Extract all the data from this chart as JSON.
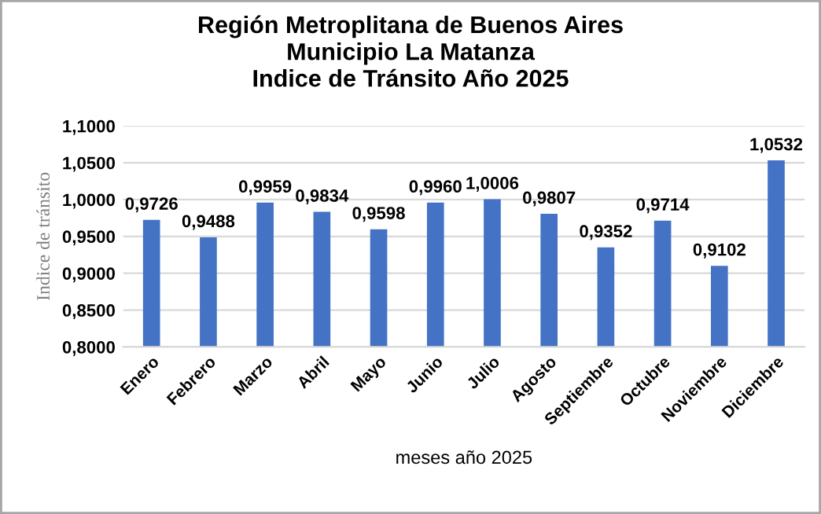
{
  "chart_data": {
    "type": "bar",
    "title": "Región Metroplitana de Buenos Aires\nMunicipio La Matanza\nIndice de Tránsito Año 2025",
    "xlabel": "meses año 2025",
    "ylabel": "Indice de tránsito",
    "categories": [
      "Enero",
      "Febrero",
      "Marzo",
      "Abril",
      "Mayo",
      "Junio",
      "Julio",
      "Agosto",
      "Septiembre",
      "Octubre",
      "Noviembre",
      "Diciembre"
    ],
    "values": [
      0.9726,
      0.9488,
      0.9959,
      0.9834,
      0.9598,
      0.996,
      1.0006,
      0.9807,
      0.9352,
      0.9714,
      0.9102,
      1.0532
    ],
    "value_labels": [
      "0,9726",
      "0,9488",
      "0,9959",
      "0,9834",
      "0,9598",
      "0,9960",
      "1,0006",
      "0,9807",
      "0,9352",
      "0,9714",
      "0,9102",
      "1,0532"
    ],
    "color": "#4472c4",
    "ylim": [
      0.8,
      1.1
    ],
    "yticks": [
      {
        "value": 0.8,
        "label": "0,8000"
      },
      {
        "value": 0.85,
        "label": "0,8500"
      },
      {
        "value": 0.9,
        "label": "0,9000"
      },
      {
        "value": 0.95,
        "label": "0,9500"
      },
      {
        "value": 1.0,
        "label": "1,0000"
      },
      {
        "value": 1.05,
        "label": "1,0500"
      },
      {
        "value": 1.1,
        "label": "1,1000"
      }
    ],
    "grid": "y",
    "legend": false
  }
}
